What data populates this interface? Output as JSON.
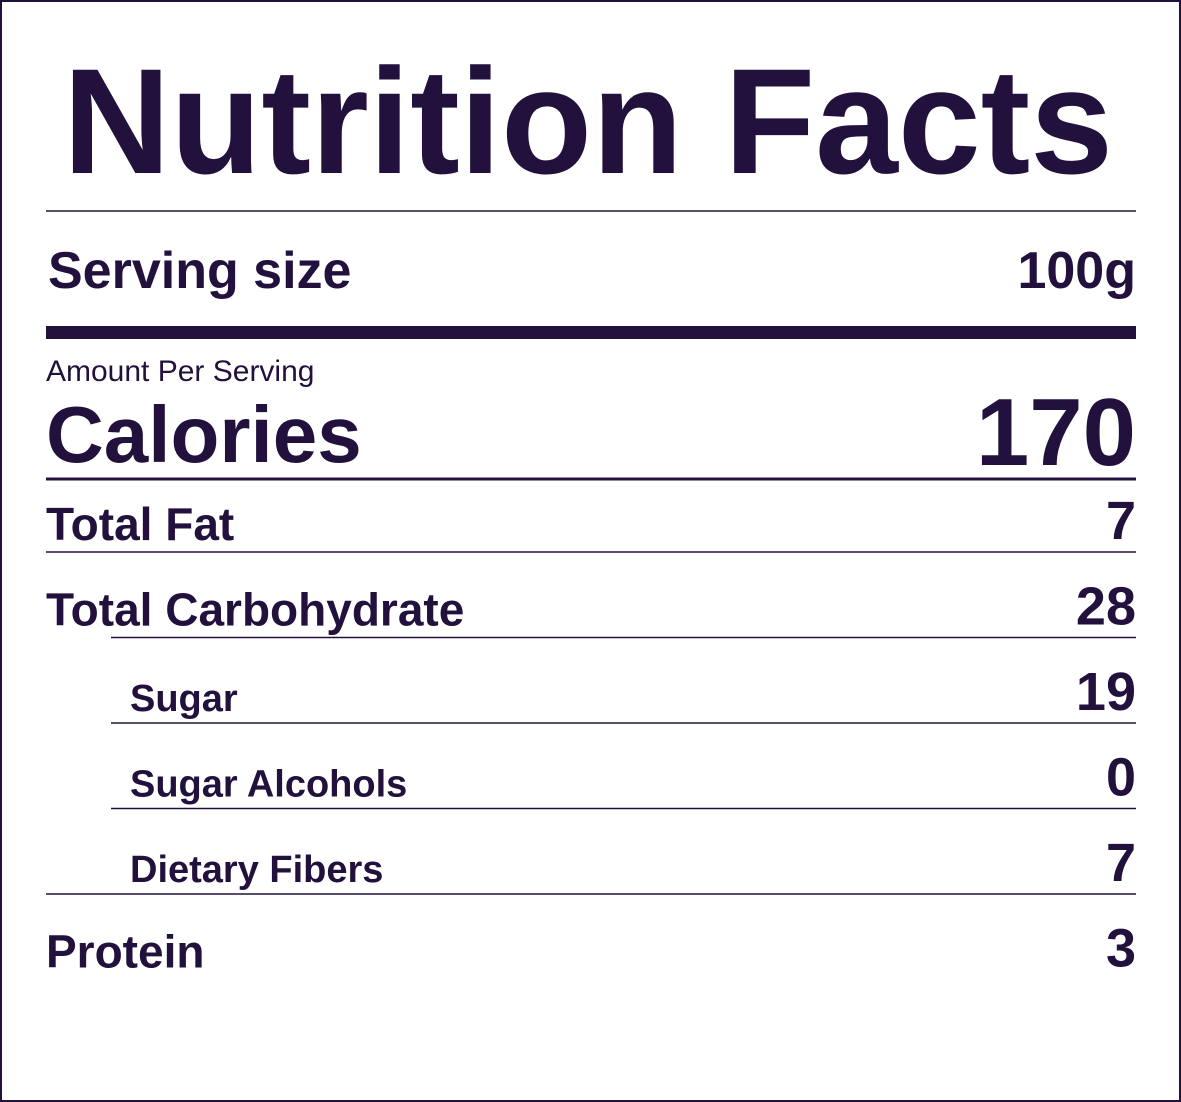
{
  "title": "Nutrition Facts",
  "serving": {
    "label": "Serving size",
    "value": "100g"
  },
  "amount_per_serving": "Amount Per Serving",
  "calories": {
    "label": "Calories",
    "value": 170
  },
  "nutrients": [
    {
      "label": "Total Fat",
      "value": 7
    },
    {
      "label": "Total Carbohydrate",
      "value": 28,
      "sub": [
        {
          "label": "Sugar",
          "value": 19
        },
        {
          "label": "Sugar Alcohols",
          "value": 0
        },
        {
          "label": "Dietary Fibers",
          "value": 7
        }
      ]
    },
    {
      "label": "Protein",
      "value": 3
    }
  ]
}
